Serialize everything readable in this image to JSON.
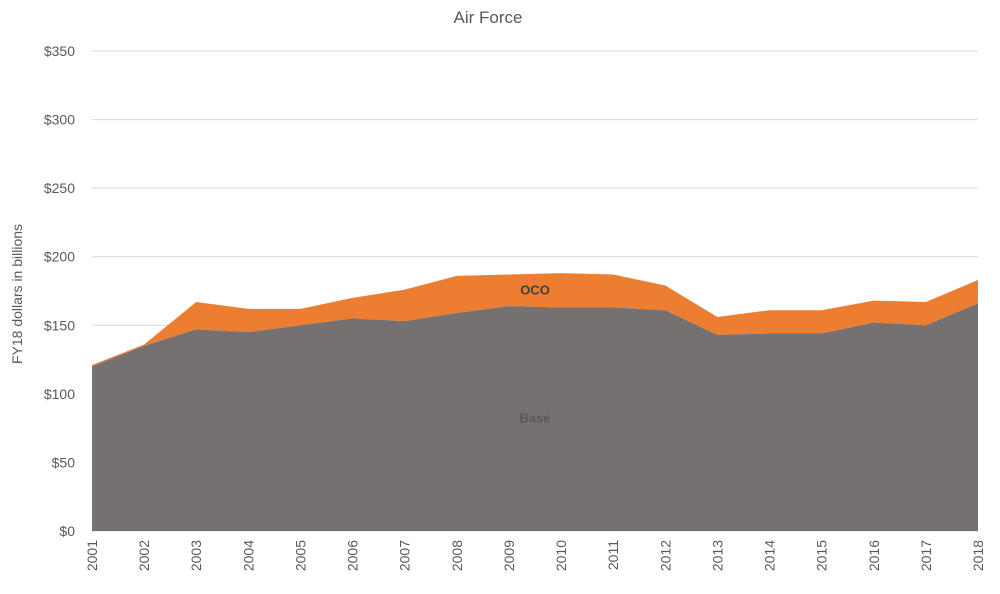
{
  "chart_data": {
    "type": "area",
    "stacked": true,
    "title": "Air Force",
    "xlabel": "",
    "ylabel": "FY18 dollars in billions",
    "x": [
      2001,
      2002,
      2003,
      2004,
      2005,
      2006,
      2007,
      2008,
      2009,
      2010,
      2011,
      2012,
      2013,
      2014,
      2015,
      2016,
      2017,
      2018
    ],
    "x_tick_labels": [
      "2001",
      "2002",
      "2003",
      "2004",
      "2005",
      "2006",
      "2007",
      "2008",
      "2009",
      "2010",
      "2011",
      "2012",
      "2013",
      "2014",
      "2015",
      "2016",
      "2017",
      "2018"
    ],
    "ylim": [
      0,
      350
    ],
    "y_ticks": [
      0,
      50,
      100,
      150,
      200,
      250,
      300,
      350
    ],
    "y_tick_labels": [
      "$0",
      "$50",
      "$100",
      "$150",
      "$200",
      "$250",
      "$300",
      "$350"
    ],
    "grid": true,
    "legend": "none",
    "series": [
      {
        "name": "Base",
        "color": "#767171",
        "label_color": "#595959",
        "values": [
          120,
          135,
          147,
          145,
          150,
          155,
          153,
          159,
          164,
          163,
          163,
          161,
          143,
          144,
          144,
          152,
          150,
          166
        ]
      },
      {
        "name": "OCO",
        "color": "#ED7D31",
        "label_color": "#404040",
        "values": [
          1,
          1,
          20,
          17,
          12,
          15,
          23,
          27,
          23,
          25,
          24,
          18,
          13,
          17,
          17,
          16,
          17,
          17
        ]
      }
    ]
  }
}
